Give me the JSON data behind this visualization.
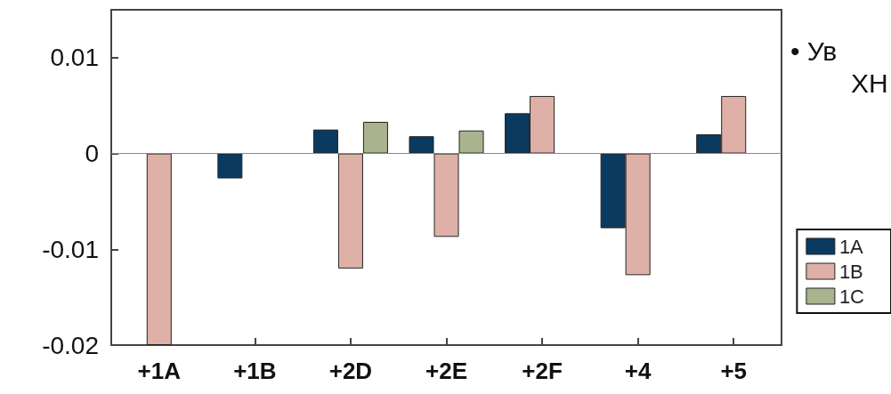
{
  "chart_data": {
    "type": "bar",
    "categories": [
      "+1A",
      "+1B",
      "+2D",
      "+2E",
      "+2F",
      "+4",
      "+5"
    ],
    "series": [
      {
        "name": "1A",
        "color": "#0b3a60",
        "values": [
          null,
          -0.0026,
          0.0025,
          0.0018,
          0.0042,
          -0.0078,
          0.002
        ]
      },
      {
        "name": "1B",
        "color": "#dfb0a8",
        "values": [
          -0.02,
          null,
          -0.012,
          -0.0087,
          0.006,
          -0.0127,
          0.006
        ]
      },
      {
        "name": "1C",
        "color": "#a9b48f",
        "values": [
          null,
          null,
          0.0033,
          0.0024,
          null,
          null,
          null
        ]
      }
    ],
    "ylim": [
      -0.02,
      0.015
    ],
    "yticks": [
      -0.02,
      -0.01,
      0,
      0.01
    ],
    "legend": "right",
    "grid": false,
    "ref_lines": [
      {
        "axis": "y",
        "value": 0,
        "color": "#888888"
      }
    ],
    "annotations": [
      "• Ув",
      "ХН"
    ]
  }
}
